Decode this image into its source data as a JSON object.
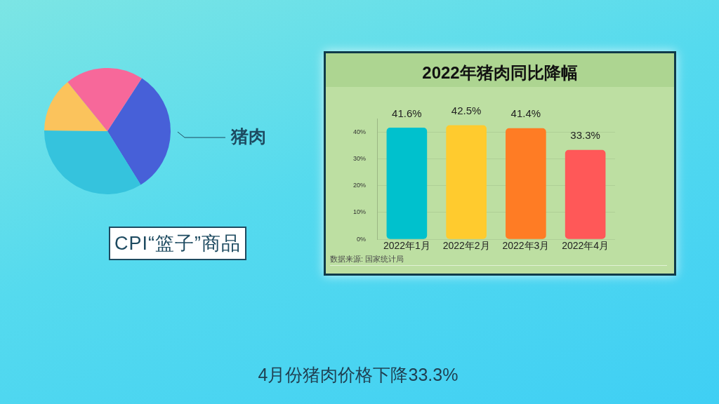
{
  "chart_data": [
    {
      "type": "pie",
      "title": "CPI“篮子”商品",
      "categories": [
        "猪肉",
        null,
        null,
        null
      ],
      "values": [
        32,
        34,
        14,
        20
      ],
      "colors": [
        "#4760d8",
        "#35c3dd",
        "#fbc35c",
        "#f7689a"
      ]
    },
    {
      "type": "bar",
      "title": "2022年猪肉同比降幅",
      "categories": [
        "2022年1月",
        "2022年2月",
        "2022年3月",
        "2022年4月"
      ],
      "values": [
        41.6,
        42.5,
        41.4,
        33.3
      ],
      "colors": [
        "#00c1cd",
        "#ffcb2e",
        "#ff7c24",
        "#ff5858"
      ],
      "value_labels": [
        "41.6%",
        "42.5%",
        "41.4%",
        "33.3%"
      ],
      "ylim": [
        0,
        45
      ],
      "yticks": [
        {
          "value": 0,
          "label": "0%"
        },
        {
          "value": 10,
          "label": "10%"
        },
        {
          "value": 20,
          "label": "20%"
        },
        {
          "value": 30,
          "label": "30%"
        },
        {
          "value": 40,
          "label": "40%"
        }
      ],
      "grid": "y",
      "annotations": [
        "数据来源: 国家统计局"
      ]
    },
    {
      "type": "other",
      "annotations": [
        "4月份猪肉价格下降33.3%"
      ]
    }
  ]
}
